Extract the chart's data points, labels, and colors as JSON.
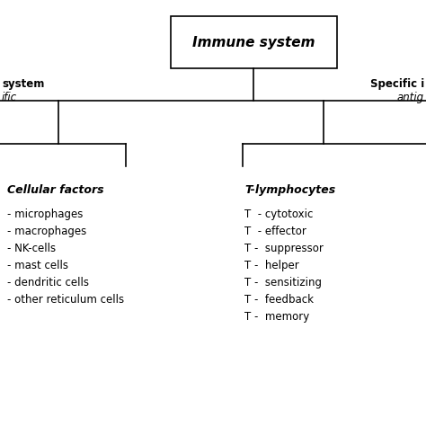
{
  "title": "Immune system",
  "bg_color": "#ffffff",
  "line_color": "#000000",
  "left_partial_label1": "system",
  "left_partial_label2": "ific",
  "right_partial_label1": "Specific i",
  "right_partial_label2": "antig",
  "left_section_title": "Cellular factors",
  "left_items": [
    "- microphages",
    "- macrophages",
    "- NK-cells",
    "- mast cells",
    "- dendritic cells",
    "- other reticulum cells"
  ],
  "right_section_title": "T-lymphocytes",
  "right_items": [
    "T  - cytotoxic",
    "T  - effector",
    "T -  suppressor",
    "T -  helper",
    "T -  sensitizing",
    "T -  feedback",
    "T -  memory"
  ]
}
